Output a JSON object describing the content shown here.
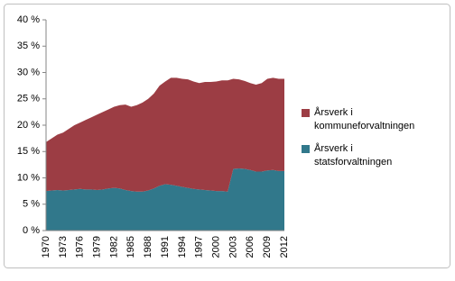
{
  "chart_data": {
    "type": "stacked_area",
    "categories": [
      "1970",
      null,
      null,
      "1973",
      null,
      null,
      "1976",
      null,
      null,
      "1979",
      null,
      null,
      "1982",
      null,
      null,
      "1985",
      null,
      null,
      "1988",
      null,
      null,
      "1991",
      null,
      null,
      "1994",
      null,
      null,
      "1997",
      null,
      null,
      "2000",
      null,
      null,
      "2003",
      null,
      null,
      "2006",
      null,
      null,
      "2009",
      null,
      null,
      "2012"
    ],
    "series": [
      {
        "name": "Årsverk i statsforvaltningen",
        "color": "#31788b",
        "values": [
          7.5,
          7.6,
          7.7,
          7.6,
          7.7,
          7.8,
          7.9,
          7.8,
          7.8,
          7.7,
          7.8,
          8.0,
          8.1,
          8.0,
          7.7,
          7.5,
          7.4,
          7.4,
          7.6,
          8.0,
          8.5,
          8.8,
          8.7,
          8.5,
          8.3,
          8.1,
          7.9,
          7.8,
          7.7,
          7.6,
          7.5,
          7.5,
          7.4,
          11.7,
          11.8,
          11.7,
          11.5,
          11.2,
          11.2,
          11.4,
          11.5,
          11.3,
          11.3
        ]
      },
      {
        "name": "Årsverk i kommuneforvaltningen",
        "color": "#9c3d44",
        "values": [
          9.3,
          9.9,
          10.5,
          11.0,
          11.6,
          12.2,
          12.6,
          13.2,
          13.7,
          14.3,
          14.7,
          15.0,
          15.4,
          15.8,
          16.2,
          16.0,
          16.4,
          16.9,
          17.4,
          18.0,
          19.0,
          19.5,
          20.3,
          20.5,
          20.5,
          20.6,
          20.4,
          20.2,
          20.5,
          20.6,
          20.8,
          21.0,
          21.1,
          17.1,
          16.9,
          16.7,
          16.5,
          16.5,
          16.8,
          17.4,
          17.5,
          17.5,
          17.5
        ]
      }
    ],
    "ylim": [
      0,
      40
    ],
    "yticks": [
      {
        "value": 0,
        "label": "0 %"
      },
      {
        "value": 5,
        "label": "5 %"
      },
      {
        "value": 10,
        "label": "10 %"
      },
      {
        "value": 15,
        "label": "15 %"
      },
      {
        "value": 20,
        "label": "20 %"
      },
      {
        "value": 25,
        "label": "25 %"
      },
      {
        "value": 30,
        "label": "30 %"
      },
      {
        "value": 35,
        "label": "35 %"
      },
      {
        "value": 40,
        "label": "40 %"
      }
    ],
    "grid": false
  }
}
